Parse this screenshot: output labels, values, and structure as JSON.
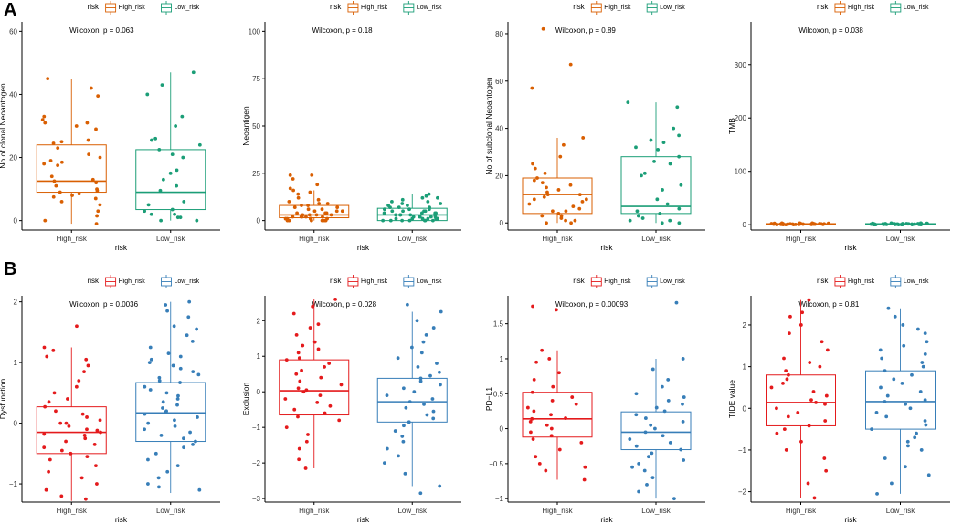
{
  "panel_labels": [
    "A",
    "B"
  ],
  "colors": {
    "high_a": "#D95F02",
    "low_a": "#1B9E77",
    "high_b": "#E41A1C",
    "low_b": "#377EB8",
    "axis": "#000000"
  },
  "chart_data": [
    {
      "type": "box",
      "row": "A",
      "legend": {
        "title": "risk",
        "entries": [
          "High_risk",
          "Low_risk"
        ],
        "placement": "top"
      },
      "annotation": "Wilcoxon, p = 0.063",
      "xlabel": "risk",
      "ylabel": "No of clonal Neoantogen",
      "categories": [
        "High_risk",
        "Low_risk"
      ],
      "ylim": [
        -3,
        63
      ],
      "yticks": [
        0,
        20,
        40,
        60
      ],
      "boxes": [
        {
          "q1": 9,
          "median": 12.5,
          "q3": 24,
          "whisker_low": -1,
          "whisker_high": 45
        },
        {
          "q1": 3.5,
          "median": 9,
          "q3": 22.5,
          "whisker_low": 0,
          "whisker_high": 47
        }
      ],
      "points": [
        [
          45,
          42,
          39.5,
          33,
          32,
          31,
          31,
          30,
          29,
          25.5,
          25,
          24.5,
          23,
          21,
          20,
          19,
          18.5,
          18,
          17.5,
          14,
          13,
          12.5,
          12,
          11,
          10,
          9.5,
          9,
          8.5,
          8,
          7.5,
          7,
          6,
          5,
          3,
          1.5,
          0,
          -1
        ],
        [
          47,
          43,
          40,
          33,
          30,
          26,
          25.5,
          24,
          22.5,
          21,
          20,
          16,
          15,
          13,
          11,
          9.5,
          6,
          5,
          3.5,
          3,
          2,
          2,
          1,
          0,
          0,
          1
        ]
      ],
      "colors": [
        "#D95F02",
        "#1B9E77"
      ]
    },
    {
      "type": "box",
      "row": "A",
      "legend": {
        "title": "risk",
        "entries": [
          "High_risk",
          "Low_risk"
        ],
        "placement": "top"
      },
      "annotation": "Wilcoxon, p = 0.18",
      "xlabel": "risk",
      "ylabel": "Neoantigen",
      "categories": [
        "High_risk",
        "Low_risk"
      ],
      "ylim": [
        -5,
        105
      ],
      "yticks": [
        0,
        25,
        50,
        75,
        100
      ],
      "boxes": [
        {
          "q1": 1.5,
          "median": 3,
          "q3": 8,
          "whisker_low": 0,
          "whisker_high": 16
        },
        {
          "q1": 0,
          "median": 3,
          "q3": 6.5,
          "whisker_low": 0,
          "whisker_high": 14
        }
      ],
      "points": [
        [
          24,
          24,
          22,
          19,
          17,
          16,
          15,
          14,
          12,
          11,
          10,
          9,
          9,
          8,
          8,
          7,
          7,
          6,
          6,
          5,
          5,
          5,
          4,
          4,
          4,
          3,
          3,
          3,
          3,
          2,
          2,
          2,
          2,
          2,
          1,
          1,
          1,
          1,
          1,
          0,
          0,
          0,
          0,
          0,
          0
        ],
        [
          14,
          13,
          12,
          12,
          11,
          10,
          10,
          9,
          9,
          8,
          8,
          7,
          7,
          7,
          6,
          6,
          6,
          5,
          5,
          5,
          5,
          4,
          4,
          4,
          4,
          3,
          3,
          3,
          3,
          3,
          2,
          2,
          2,
          2,
          2,
          1,
          1,
          1,
          1,
          1,
          1,
          0,
          0,
          0,
          0,
          0,
          0,
          0
        ]
      ],
      "colors": [
        "#D95F02",
        "#1B9E77"
      ]
    },
    {
      "type": "box",
      "row": "A",
      "legend": {
        "title": "risk",
        "entries": [
          "High_risk",
          "Low_risk"
        ],
        "placement": "top"
      },
      "annotation": "Wilcoxon, p = 0.89",
      "xlabel": "risk",
      "ylabel": "No of subclonal Neoantogen",
      "categories": [
        "High_risk",
        "Low_risk"
      ],
      "ylim": [
        -3,
        85
      ],
      "yticks": [
        0,
        20,
        40,
        60,
        80
      ],
      "boxes": [
        {
          "q1": 4,
          "median": 12,
          "q3": 19,
          "whisker_low": 0,
          "whisker_high": 36
        },
        {
          "q1": 4,
          "median": 7,
          "q3": 28,
          "whisker_low": 0,
          "whisker_high": 51
        }
      ],
      "points": [
        [
          82,
          67,
          57,
          36,
          33,
          28,
          25,
          23,
          21,
          19,
          18,
          17,
          16,
          15,
          14,
          13,
          12,
          12,
          11,
          10,
          10,
          9,
          8,
          7,
          6,
          5,
          5,
          4,
          3,
          3,
          2,
          1,
          1,
          0,
          0
        ],
        [
          51,
          49,
          40,
          37,
          35,
          34,
          32,
          31,
          28,
          26,
          25,
          21,
          20,
          16,
          14,
          10,
          8,
          6,
          5,
          4,
          3,
          2,
          1,
          1,
          0,
          0
        ]
      ],
      "colors": [
        "#D95F02",
        "#1B9E77"
      ]
    },
    {
      "type": "box",
      "row": "A",
      "legend": {
        "title": "risk",
        "entries": [
          "High_risk",
          "Low_risk"
        ],
        "placement": "top"
      },
      "annotation": "Wilcoxon, p = 0.038",
      "xlabel": "risk",
      "ylabel": "TMB",
      "categories": [
        "High_risk",
        "Low_risk"
      ],
      "ylim": [
        -10,
        380
      ],
      "yticks": [
        0,
        100,
        200,
        300
      ],
      "boxes": [
        {
          "q1": 0.5,
          "median": 1,
          "q3": 2,
          "whisker_low": 0,
          "whisker_high": 3
        },
        {
          "q1": 0.5,
          "median": 1,
          "q3": 2,
          "whisker_low": 0,
          "whisker_high": 3
        }
      ],
      "points": [
        [
          3,
          3,
          3,
          2.5,
          2.5,
          2,
          2,
          2,
          2,
          2,
          1.5,
          1.5,
          1.5,
          1.5,
          1,
          1,
          1,
          1,
          1,
          1,
          1,
          1,
          0.5,
          0.5,
          0.5,
          0.5,
          0.5,
          0.5,
          0,
          0,
          0,
          0
        ],
        [
          3,
          3,
          2.5,
          2.5,
          2.5,
          2,
          2,
          2,
          2,
          2,
          2,
          1.5,
          1.5,
          1.5,
          1.5,
          1.5,
          1,
          1,
          1,
          1,
          1,
          1,
          1,
          1,
          1,
          0.5,
          0.5,
          0.5,
          0.5,
          0.5,
          0.5,
          0.5,
          0,
          0,
          0,
          0,
          0,
          0,
          0,
          0
        ]
      ],
      "colors": [
        "#D95F02",
        "#1B9E77"
      ]
    },
    {
      "type": "box",
      "row": "B",
      "legend": {
        "title": "risk",
        "entries": [
          "High_risk",
          "Low_risk"
        ],
        "placement": "top"
      },
      "annotation": "Wilcoxon, p = 0.0036",
      "xlabel": "risk",
      "ylabel": "Dysfunction",
      "categories": [
        "High_risk",
        "Low_risk"
      ],
      "ylim": [
        -1.3,
        2.1
      ],
      "yticks": [
        -1,
        0,
        1,
        2
      ],
      "boxes": [
        {
          "q1": -0.5,
          "median": -0.15,
          "q3": 0.27,
          "whisker_low": -1.28,
          "whisker_high": 1.25
        },
        {
          "q1": -0.3,
          "median": 0.17,
          "q3": 0.67,
          "whisker_low": -1.15,
          "whisker_high": 2.0
        }
      ],
      "points": [
        [
          1.6,
          1.25,
          1.2,
          1.1,
          1.05,
          0.95,
          0.85,
          0.7,
          0.6,
          0.5,
          0.4,
          0.35,
          0.27,
          0.2,
          0.15,
          0.1,
          0.05,
          0,
          0,
          -0.05,
          -0.1,
          -0.12,
          -0.15,
          -0.18,
          -0.2,
          -0.25,
          -0.3,
          -0.35,
          -0.4,
          -0.45,
          -0.5,
          -0.55,
          -0.6,
          -0.7,
          -0.8,
          -0.9,
          -1.0,
          -1.1,
          -1.2,
          -1.25
        ],
        [
          2.0,
          1.95,
          1.85,
          1.75,
          1.6,
          1.55,
          1.45,
          1.35,
          1.25,
          1.15,
          1.1,
          1.05,
          1.0,
          0.95,
          0.9,
          0.85,
          0.8,
          0.75,
          0.7,
          0.67,
          0.6,
          0.55,
          0.5,
          0.45,
          0.4,
          0.35,
          0.3,
          0.25,
          0.2,
          0.18,
          0.15,
          0.1,
          0.05,
          0,
          -0.05,
          -0.1,
          -0.15,
          -0.2,
          -0.25,
          -0.3,
          -0.35,
          -0.4,
          -0.5,
          -0.6,
          -0.7,
          -0.8,
          -0.9,
          -1.0,
          -1.05,
          -1.1
        ]
      ],
      "colors": [
        "#E41A1C",
        "#377EB8"
      ]
    },
    {
      "type": "box",
      "row": "B",
      "legend": {
        "title": "risk",
        "entries": [
          "High_risk",
          "Low_risk"
        ],
        "placement": "top"
      },
      "annotation": "Wilcoxon, p = 0.028",
      "xlabel": "risk",
      "ylabel": "Exclusion",
      "categories": [
        "High_risk",
        "Low_risk"
      ],
      "ylim": [
        -3.1,
        2.7
      ],
      "yticks": [
        -3,
        -2,
        -1,
        0,
        1,
        2
      ],
      "boxes": [
        {
          "q1": -0.65,
          "median": 0.03,
          "q3": 0.9,
          "whisker_low": -2.15,
          "whisker_high": 2.6
        },
        {
          "q1": -0.85,
          "median": -0.28,
          "q3": 0.38,
          "whisker_low": -2.65,
          "whisker_high": 2.25
        }
      ],
      "points": [
        [
          2.6,
          2.4,
          2.2,
          1.9,
          1.8,
          1.6,
          1.4,
          1.3,
          1.2,
          1.1,
          0.95,
          0.9,
          0.8,
          0.7,
          0.6,
          0.5,
          0.4,
          0.3,
          0.2,
          0.1,
          0.05,
          0,
          -0.1,
          -0.2,
          -0.3,
          -0.4,
          -0.5,
          -0.6,
          -0.7,
          -0.8,
          -1.0,
          -1.2,
          -1.4,
          -1.6,
          -1.9,
          -2.15
        ],
        [
          2.45,
          2.25,
          2.0,
          1.8,
          1.6,
          1.4,
          1.25,
          1.1,
          0.95,
          0.8,
          0.7,
          0.55,
          0.45,
          0.38,
          0.3,
          0.2,
          0.1,
          0,
          -0.1,
          -0.2,
          -0.28,
          -0.35,
          -0.45,
          -0.55,
          -0.65,
          -0.75,
          -0.85,
          -0.95,
          -1.1,
          -1.25,
          -1.4,
          -1.6,
          -1.8,
          -2.0,
          -2.3,
          -2.65,
          -2.85
        ]
      ],
      "colors": [
        "#E41A1C",
        "#377EB8"
      ]
    },
    {
      "type": "box",
      "row": "B",
      "legend": {
        "title": "risk",
        "entries": [
          "High_risk",
          "Low_risk"
        ],
        "placement": "top"
      },
      "annotation": "Wilcoxon, p = 0.00093",
      "xlabel": "risk",
      "ylabel": "PD−L1",
      "categories": [
        "High_risk",
        "Low_risk"
      ],
      "ylim": [
        -1.05,
        1.9
      ],
      "yticks": [
        -1,
        -0.5,
        0,
        0.5,
        1,
        1.5
      ],
      "boxes": [
        {
          "q1": -0.12,
          "median": 0.14,
          "q3": 0.52,
          "whisker_low": -0.73,
          "whisker_high": 1.12
        },
        {
          "q1": -0.3,
          "median": -0.05,
          "q3": 0.24,
          "whisker_low": -1.0,
          "whisker_high": 1.0
        }
      ],
      "points": [
        [
          1.75,
          1.7,
          1.12,
          1.0,
          0.95,
          0.8,
          0.7,
          0.6,
          0.52,
          0.45,
          0.4,
          0.35,
          0.3,
          0.25,
          0.2,
          0.15,
          0.14,
          0.1,
          0.05,
          0,
          -0.05,
          -0.1,
          -0.15,
          -0.2,
          -0.3,
          -0.4,
          -0.5,
          -0.55,
          -0.6,
          -0.73
        ],
        [
          1.8,
          1.0,
          0.85,
          0.7,
          0.6,
          0.5,
          0.45,
          0.4,
          0.35,
          0.3,
          0.25,
          0.2,
          0.15,
          0.1,
          0.05,
          0,
          -0.05,
          -0.1,
          -0.15,
          -0.2,
          -0.25,
          -0.3,
          -0.35,
          -0.4,
          -0.45,
          -0.5,
          -0.55,
          -0.6,
          -0.7,
          -0.8,
          -0.9,
          -1.0
        ]
      ],
      "colors": [
        "#E41A1C",
        "#377EB8"
      ]
    },
    {
      "type": "box",
      "row": "B",
      "legend": {
        "title": "risk",
        "entries": [
          "High_risk",
          "Low_risk"
        ],
        "placement": "top"
      },
      "annotation": "Wilcoxon, p = 0.81",
      "xlabel": "risk",
      "ylabel": "TIDE value",
      "categories": [
        "High_risk",
        "Low_risk"
      ],
      "ylim": [
        -2.25,
        2.7
      ],
      "yticks": [
        -2,
        -1,
        0,
        1,
        2
      ],
      "boxes": [
        {
          "q1": -0.42,
          "median": 0.14,
          "q3": 0.8,
          "whisker_low": -2.15,
          "whisker_high": 2.6
        },
        {
          "q1": -0.5,
          "median": 0.16,
          "q3": 0.9,
          "whisker_low": -2.05,
          "whisker_high": 2.4
        }
      ],
      "points": [
        [
          2.6,
          2.3,
          2.2,
          2.0,
          1.8,
          1.6,
          1.4,
          1.2,
          1.1,
          1.0,
          0.9,
          0.8,
          0.7,
          0.6,
          0.5,
          0.4,
          0.3,
          0.2,
          0.14,
          0.1,
          0,
          -0.1,
          -0.2,
          -0.3,
          -0.42,
          -0.5,
          -0.6,
          -0.8,
          -1.0,
          -1.2,
          -1.5,
          -1.8,
          -2.15
        ],
        [
          2.4,
          2.2,
          2.0,
          1.9,
          1.8,
          1.6,
          1.5,
          1.4,
          1.3,
          1.2,
          1.1,
          1.0,
          0.9,
          0.8,
          0.7,
          0.6,
          0.5,
          0.4,
          0.3,
          0.2,
          0.16,
          0.1,
          0,
          -0.1,
          -0.2,
          -0.3,
          -0.4,
          -0.5,
          -0.6,
          -0.7,
          -0.8,
          -0.9,
          -1.0,
          -1.2,
          -1.4,
          -1.6,
          -1.8,
          -2.05
        ]
      ],
      "colors": [
        "#E41A1C",
        "#377EB8"
      ]
    }
  ]
}
